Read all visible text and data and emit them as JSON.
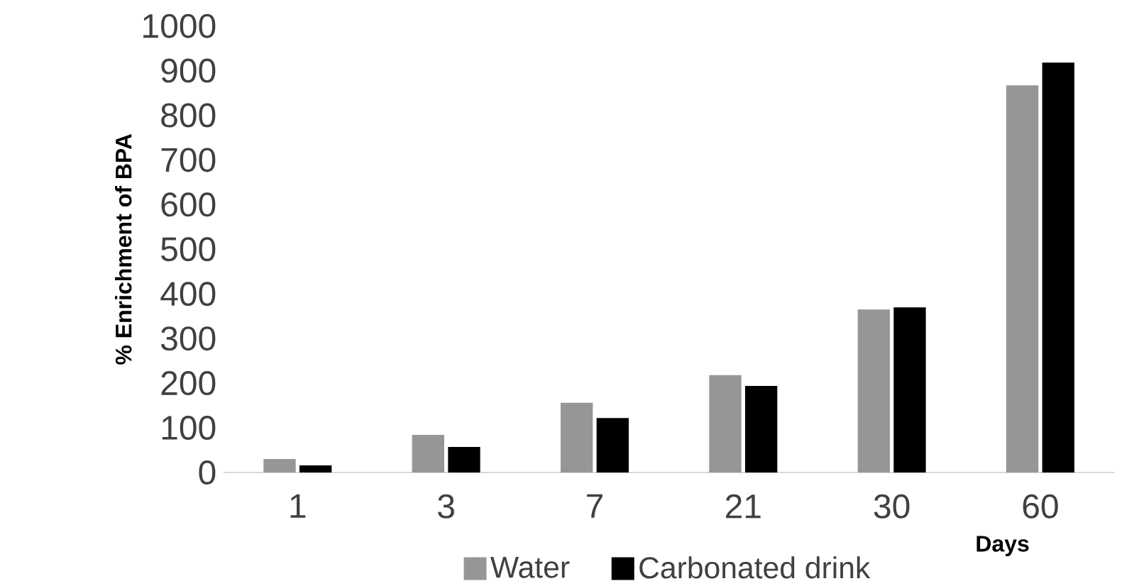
{
  "chart_data": {
    "type": "bar",
    "xlabel": "Days",
    "ylabel": "% Enrichment of BPA",
    "categories": [
      "1",
      "3",
      "7",
      "21",
      "30",
      "60"
    ],
    "series": [
      {
        "name": "Water",
        "color": "#969696",
        "values": [
          30,
          84,
          156,
          218,
          365,
          867
        ]
      },
      {
        "name": "Carbonated drink",
        "color": "#000000",
        "values": [
          16,
          57,
          122,
          194,
          370,
          918
        ]
      }
    ],
    "ylim": [
      0,
      1000
    ],
    "yticks": [
      0,
      100,
      200,
      300,
      400,
      500,
      600,
      700,
      800,
      900,
      1000
    ],
    "legend": "bottom",
    "grid": false
  }
}
